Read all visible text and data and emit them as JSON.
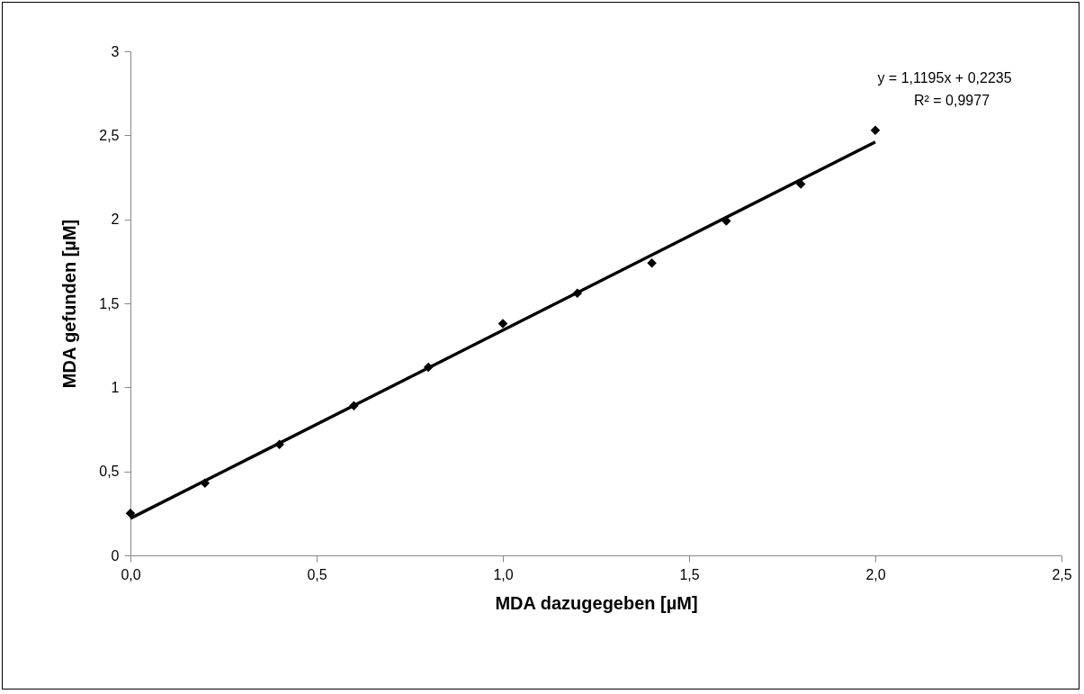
{
  "chart_data": {
    "type": "scatter",
    "xlabel": "MDA dazugegeben [µM]",
    "ylabel": "MDA gefunden [µM]",
    "xlim": [
      0,
      2.5
    ],
    "ylim": [
      0,
      3
    ],
    "xticks": [
      {
        "value": 0,
        "label": "0,0"
      },
      {
        "value": 0.5,
        "label": "0,5"
      },
      {
        "value": 1,
        "label": "1,0"
      },
      {
        "value": 1.5,
        "label": "1,5"
      },
      {
        "value": 2,
        "label": "2,0"
      },
      {
        "value": 2.5,
        "label": "2,5"
      }
    ],
    "yticks": [
      0,
      {
        "value": 0.5,
        "label": "0,5"
      },
      1,
      {
        "value": 1.5,
        "label": "1,5"
      },
      2,
      {
        "value": 2.5,
        "label": "2,5"
      },
      3
    ],
    "grid": false,
    "marker": "diamond",
    "annotations": [
      "y = 1,1195x + 0,2235",
      "R² = 0,9977"
    ],
    "series": [
      {
        "color": "#000000",
        "x": [
          0,
          0.2,
          0.4,
          0.6,
          0.8,
          1.0,
          1.2,
          1.4,
          1.6,
          1.8,
          2.0
        ],
        "values": [
          0.25,
          0.43,
          0.66,
          0.89,
          1.12,
          1.38,
          1.56,
          1.74,
          1.99,
          2.21,
          2.53
        ]
      },
      {
        "type": "line",
        "marker": "none",
        "color": "#000000",
        "x": [
          0,
          2
        ],
        "values": [
          0.22,
          2.46
        ]
      }
    ]
  }
}
